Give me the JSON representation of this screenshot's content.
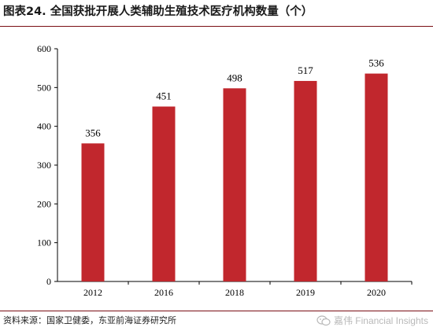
{
  "header": {
    "title": "图表24. 全国获批开展人类辅助生殖技术医疗机构数量（个）"
  },
  "footer": {
    "source": "资料来源：国家卫健委，东亚前海证券研究所",
    "watermark": "嘉伟 Financial Insights",
    "watermark_icon": "wechat-icon"
  },
  "colors": {
    "bar": "#c1272d",
    "axis": "#000000",
    "rule": "#7a0e14"
  },
  "chart_data": {
    "type": "bar",
    "title": "",
    "xlabel": "",
    "ylabel": "",
    "categories": [
      "2012",
      "2016",
      "2018",
      "2019",
      "2020"
    ],
    "values": [
      356,
      451,
      498,
      517,
      536
    ],
    "data_labels": [
      "356",
      "451",
      "498",
      "517",
      "536"
    ],
    "ylim": [
      0,
      600
    ],
    "yticks": [
      0,
      100,
      200,
      300,
      400,
      500,
      600
    ],
    "grid": false,
    "legend": "none"
  }
}
